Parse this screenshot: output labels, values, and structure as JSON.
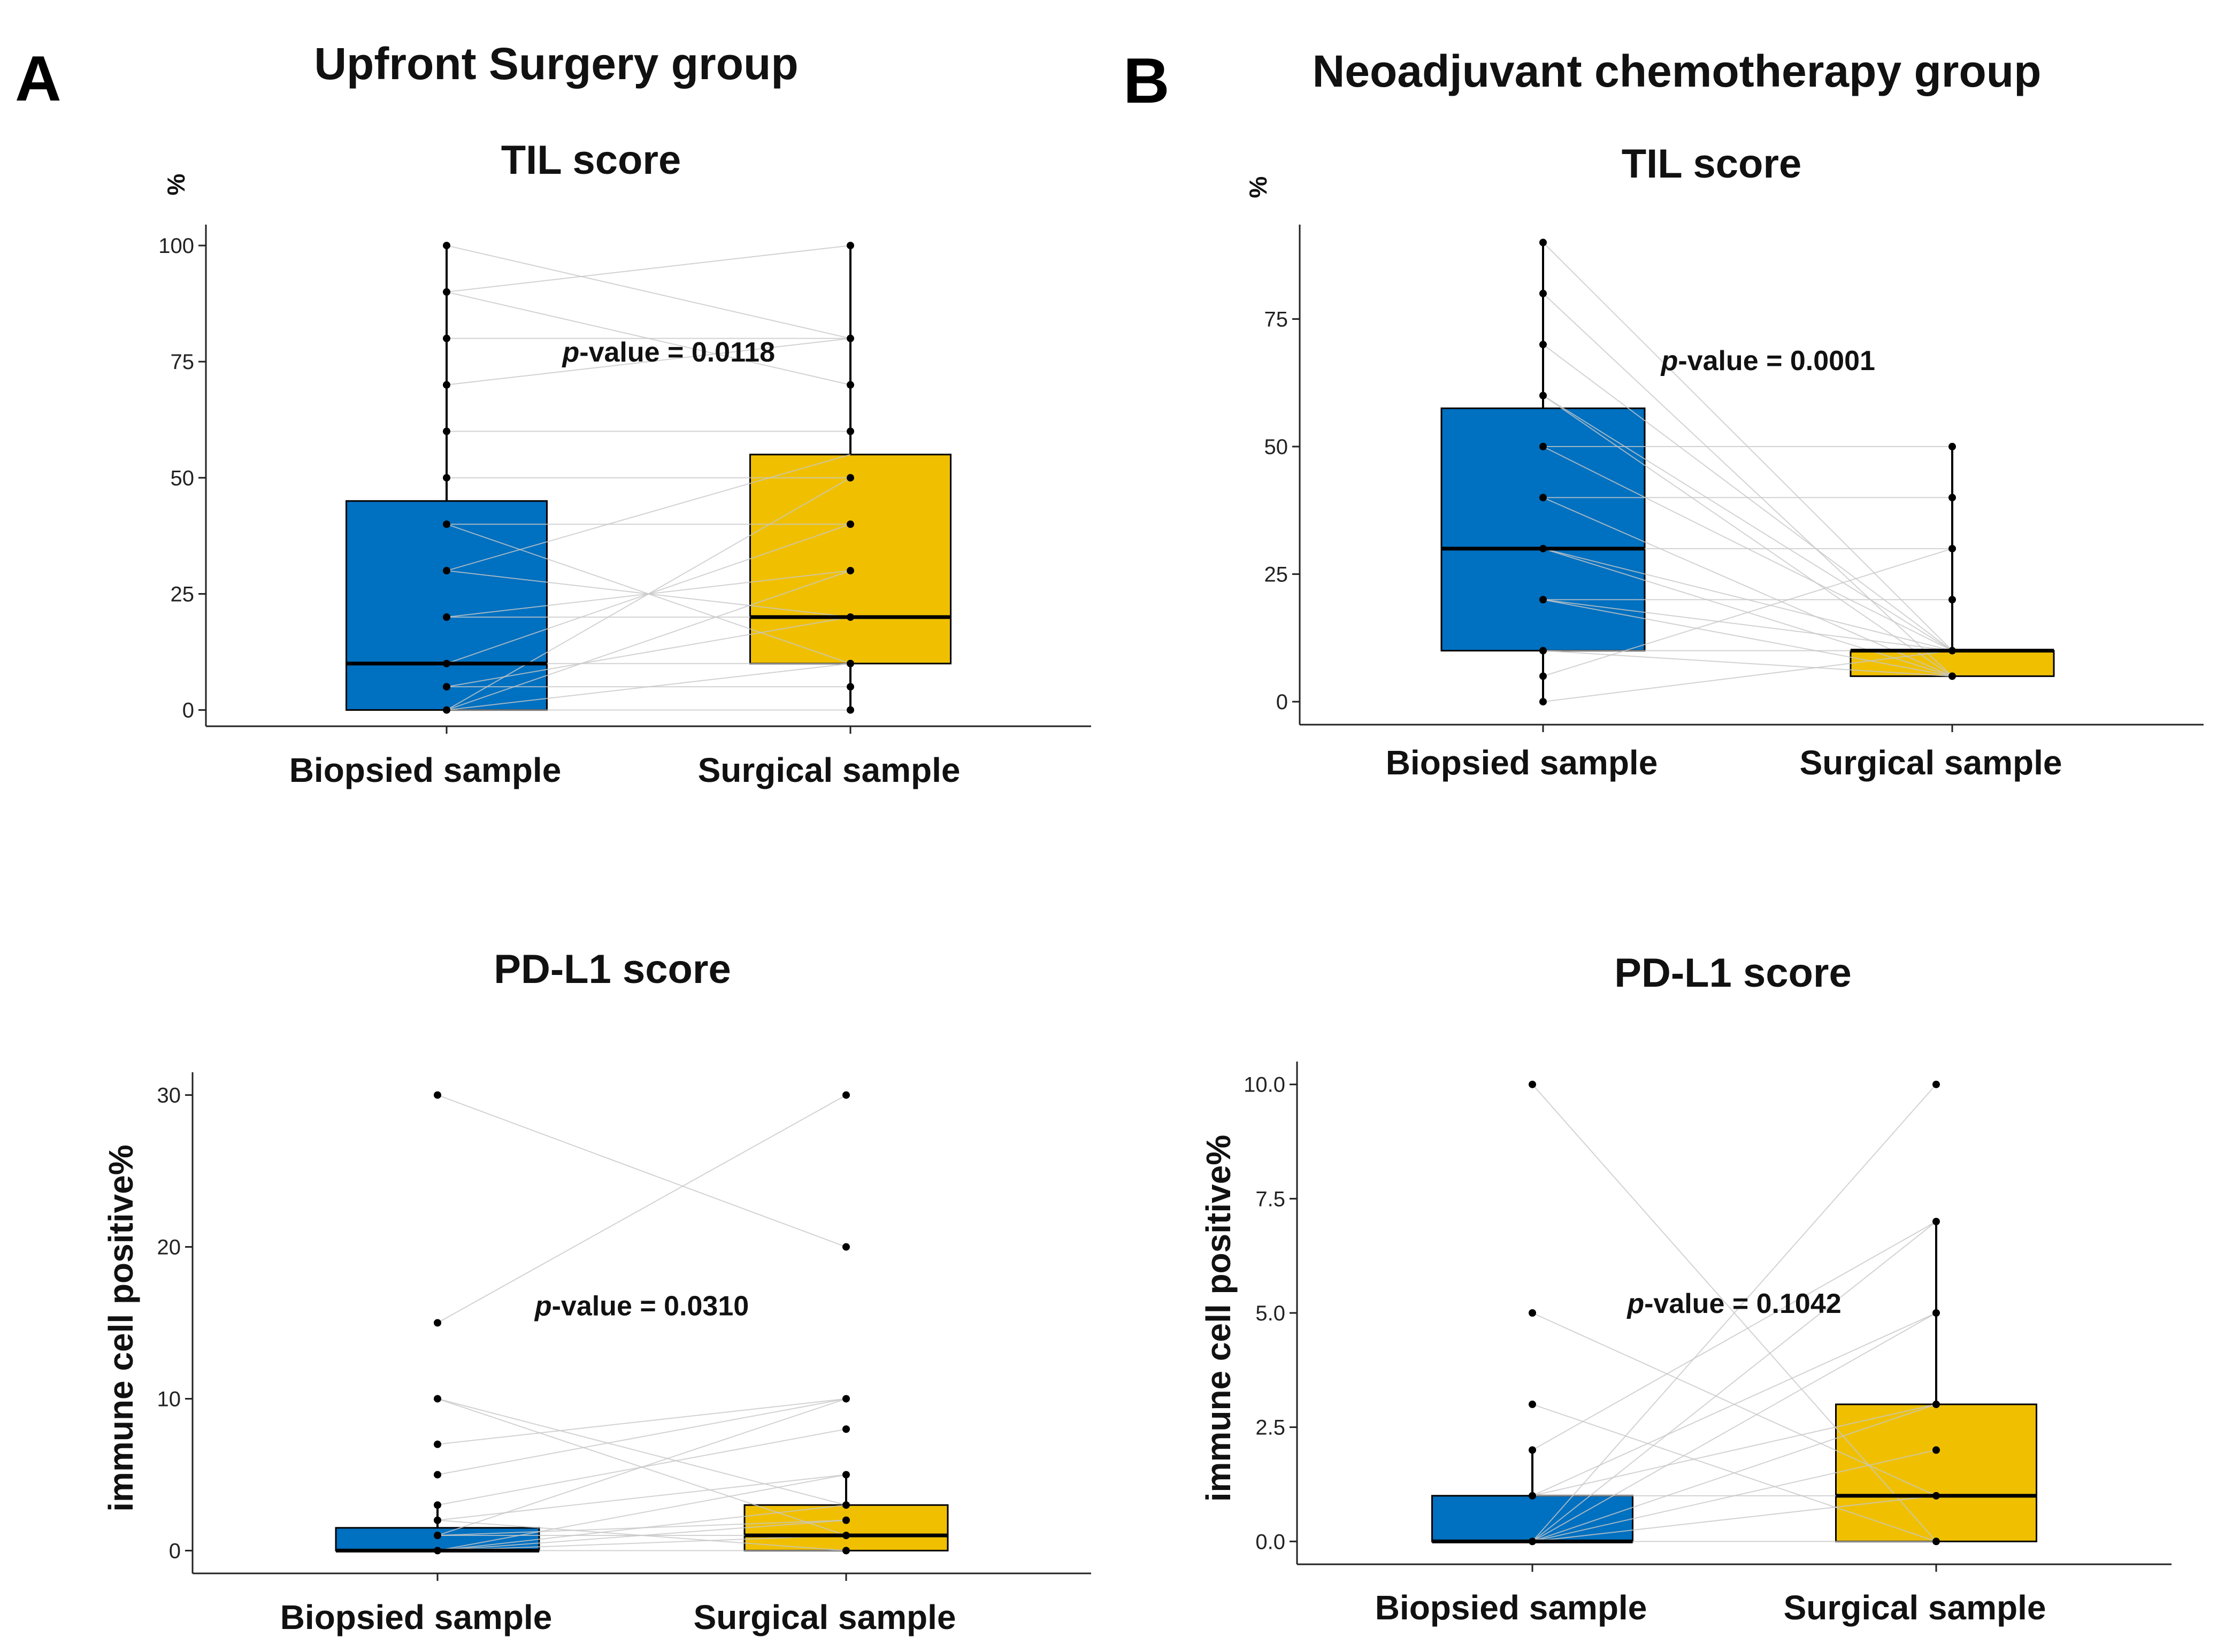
{
  "figure": {
    "panel_a_letter": "A",
    "panel_b_letter": "B",
    "group_a_title": "Upfront Surgery group",
    "group_b_title": "Neoadjuvant chemotherapy group"
  },
  "colors": {
    "biopsied": "#0070c0",
    "surgical": "#f0c000",
    "pair_line": "#d9d9d9",
    "point": "#000000"
  },
  "chart_data": [
    {
      "id": "A-TIL",
      "type": "boxplot",
      "group": "Upfront Surgery group",
      "title": "TIL score",
      "ylabel": "%",
      "ylim": [
        -3.5,
        104.5
      ],
      "yticks": [
        0,
        25,
        50,
        75,
        100
      ],
      "ytick_labels": [
        "0",
        "25",
        "50",
        "75",
        "100"
      ],
      "categories": [
        "Biopsied sample",
        "Surgical sample"
      ],
      "boxes": [
        {
          "name": "Biopsied sample",
          "q1": 0,
          "median": 10,
          "q3": 45,
          "whisker_low": 0,
          "whisker_high": 100
        },
        {
          "name": "Surgical sample",
          "q1": 10,
          "median": 20,
          "q3": 55,
          "whisker_low": 0,
          "whisker_high": 100
        }
      ],
      "points": [
        [
          0,
          5,
          10,
          20,
          30,
          40,
          50,
          60,
          70,
          80,
          90,
          100
        ],
        [
          0,
          5,
          10,
          20,
          30,
          40,
          50,
          60,
          70,
          80,
          100
        ]
      ],
      "pairs": [
        [
          90,
          100
        ],
        [
          100,
          80
        ],
        [
          80,
          80
        ],
        [
          90,
          70
        ],
        [
          70,
          80
        ],
        [
          60,
          60
        ],
        [
          50,
          50
        ],
        [
          40,
          40
        ],
        [
          30,
          20
        ],
        [
          30,
          55
        ],
        [
          20,
          20
        ],
        [
          20,
          30
        ],
        [
          10,
          40
        ],
        [
          10,
          10
        ],
        [
          5,
          5
        ],
        [
          5,
          20
        ],
        [
          0,
          10
        ],
        [
          0,
          0
        ],
        [
          0,
          50
        ],
        [
          40,
          10
        ],
        [
          0,
          30
        ]
      ],
      "p_prefix": "p",
      "p_text": "-value = 0.0118",
      "p_pos": [
        0.55,
        75
      ]
    },
    {
      "id": "B-TIL",
      "type": "boxplot",
      "group": "Neoadjuvant chemotherapy group",
      "title": "TIL score",
      "ylabel": "%",
      "ylim": [
        -4.5,
        93.5
      ],
      "yticks": [
        0,
        25,
        50,
        75
      ],
      "ytick_labels": [
        "0",
        "25",
        "50",
        "75"
      ],
      "categories": [
        "Biopsied sample",
        "Surgical sample"
      ],
      "boxes": [
        {
          "name": "Biopsied sample",
          "q1": 10,
          "median": 30,
          "q3": 57.5,
          "whisker_low": 0,
          "whisker_high": 90
        },
        {
          "name": "Surgical sample",
          "q1": 5,
          "median": 10,
          "q3": 10,
          "whisker_low": 5,
          "whisker_high": 50
        }
      ],
      "points": [
        [
          0,
          5,
          10,
          20,
          30,
          40,
          50,
          60,
          70,
          80,
          90
        ],
        [
          5,
          10,
          20,
          30,
          40,
          50
        ]
      ],
      "pairs": [
        [
          90,
          10
        ],
        [
          80,
          5
        ],
        [
          70,
          10
        ],
        [
          60,
          5
        ],
        [
          50,
          50
        ],
        [
          50,
          10
        ],
        [
          40,
          40
        ],
        [
          30,
          30
        ],
        [
          30,
          10
        ],
        [
          30,
          5
        ],
        [
          20,
          10
        ],
        [
          20,
          20
        ],
        [
          20,
          5
        ],
        [
          10,
          10
        ],
        [
          10,
          5
        ],
        [
          5,
          30
        ],
        [
          0,
          10
        ],
        [
          60,
          10
        ],
        [
          40,
          5
        ]
      ],
      "p_prefix": "p",
      "p_text": "-value = 0.0001",
      "p_pos": [
        0.55,
        65
      ]
    },
    {
      "id": "A-PDL1",
      "type": "boxplot",
      "group": "Upfront Surgery group",
      "title": "PD-L1 score",
      "ylabel": "immune cell positive%",
      "ylim": [
        -1.5,
        31.5
      ],
      "yticks": [
        0,
        10,
        20,
        30
      ],
      "ytick_labels": [
        "0",
        "10",
        "20",
        "30"
      ],
      "categories": [
        "Biopsied sample",
        "Surgical sample"
      ],
      "boxes": [
        {
          "name": "Biopsied sample",
          "q1": 0,
          "median": 0,
          "q3": 1.5,
          "whisker_low": 0,
          "whisker_high": 3
        },
        {
          "name": "Surgical sample",
          "q1": 0,
          "median": 1,
          "q3": 3,
          "whisker_low": 0,
          "whisker_high": 5
        }
      ],
      "points": [
        [
          0,
          1,
          2,
          3,
          5,
          7,
          10,
          15,
          30
        ],
        [
          0,
          1,
          2,
          3,
          5,
          8,
          10,
          20,
          30
        ]
      ],
      "pairs": [
        [
          30,
          20
        ],
        [
          15,
          30
        ],
        [
          10,
          1
        ],
        [
          10,
          3
        ],
        [
          7,
          10
        ],
        [
          5,
          10
        ],
        [
          3,
          8
        ],
        [
          2,
          5
        ],
        [
          1,
          2
        ],
        [
          1,
          10
        ],
        [
          0,
          1
        ],
        [
          0,
          0
        ],
        [
          0,
          3
        ],
        [
          0,
          5
        ],
        [
          2,
          0
        ],
        [
          1,
          1
        ],
        [
          0,
          2
        ]
      ],
      "p_prefix": "p",
      "p_text": "-value = 0.0310",
      "p_pos": [
        0.5,
        15.5
      ]
    },
    {
      "id": "B-PDL1",
      "type": "boxplot",
      "group": "Neoadjuvant chemotherapy group",
      "title": "PD-L1 score",
      "ylabel": "immune cell positive%",
      "ylim": [
        -0.5,
        10.5
      ],
      "yticks": [
        0.0,
        2.5,
        5.0,
        7.5,
        10.0
      ],
      "ytick_labels": [
        "0.0",
        "2.5",
        "5.0",
        "7.5",
        "10.0"
      ],
      "categories": [
        "Biopsied sample",
        "Surgical sample"
      ],
      "boxes": [
        {
          "name": "Biopsied sample",
          "q1": 0,
          "median": 0,
          "q3": 1,
          "whisker_low": 0,
          "whisker_high": 2
        },
        {
          "name": "Surgical sample",
          "q1": 0,
          "median": 1,
          "q3": 3,
          "whisker_low": 0,
          "whisker_high": 7
        }
      ],
      "points": [
        [
          0,
          1,
          2,
          3,
          5,
          10
        ],
        [
          0,
          1,
          2,
          3,
          5,
          7,
          10
        ]
      ],
      "pairs": [
        [
          10,
          0
        ],
        [
          5,
          1
        ],
        [
          3,
          0
        ],
        [
          2,
          7
        ],
        [
          1,
          5
        ],
        [
          1,
          3
        ],
        [
          0,
          10
        ],
        [
          0,
          7
        ],
        [
          0,
          5
        ],
        [
          0,
          2
        ],
        [
          0,
          1
        ],
        [
          0,
          0
        ],
        [
          1,
          1
        ],
        [
          0,
          3
        ]
      ],
      "p_prefix": "p",
      "p_text": "-value = 0.1042",
      "p_pos": [
        0.5,
        5.0
      ]
    }
  ]
}
